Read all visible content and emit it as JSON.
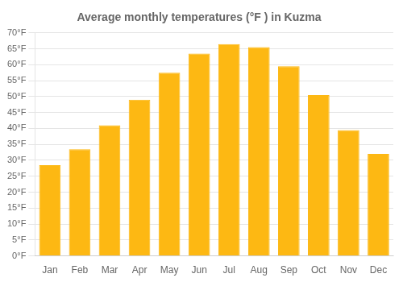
{
  "chart_data": {
    "type": "bar",
    "title": "Average monthly temperatures (°F ) in Kuzma",
    "categories": [
      "Jan",
      "Feb",
      "Mar",
      "Apr",
      "May",
      "Jun",
      "Jul",
      "Aug",
      "Sep",
      "Oct",
      "Nov",
      "Dec"
    ],
    "values": [
      28.5,
      33.5,
      41.0,
      49.0,
      57.5,
      63.5,
      66.5,
      65.5,
      59.5,
      50.5,
      39.5,
      32.0
    ],
    "color": "#FDB813",
    "ylim": [
      0,
      70
    ],
    "yticks": [
      {
        "value": 0,
        "label": "0°F"
      },
      {
        "value": 5,
        "label": "5°F"
      },
      {
        "value": 10,
        "label": "10°F"
      },
      {
        "value": 15,
        "label": "15°F"
      },
      {
        "value": 20,
        "label": "20°F"
      },
      {
        "value": 25,
        "label": "25°F"
      },
      {
        "value": 30,
        "label": "30°F"
      },
      {
        "value": 35,
        "label": "35°F"
      },
      {
        "value": 40,
        "label": "40°F"
      },
      {
        "value": 45,
        "label": "45°F"
      },
      {
        "value": 50,
        "label": "50°F"
      },
      {
        "value": 55,
        "label": "55°F"
      },
      {
        "value": 60,
        "label": "60°F"
      },
      {
        "value": 65,
        "label": "65°F"
      },
      {
        "value": 70,
        "label": "70°F"
      }
    ],
    "grid": true
  }
}
